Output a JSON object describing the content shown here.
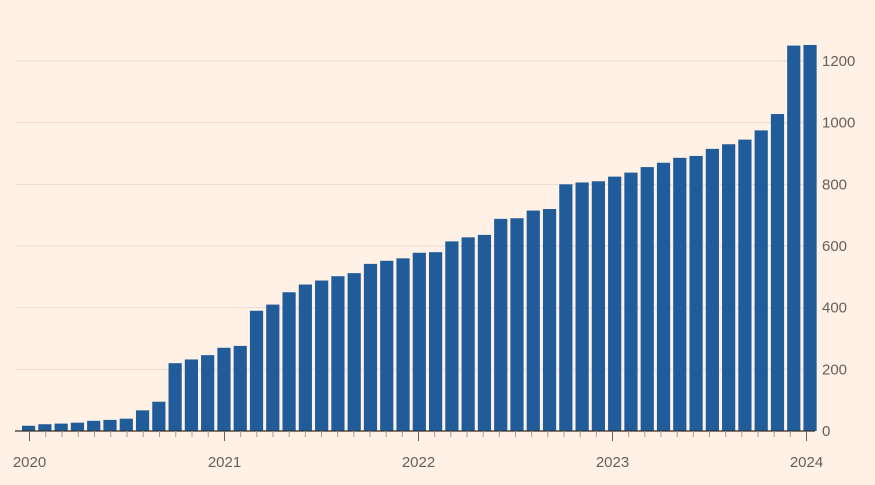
{
  "chart_data": {
    "type": "bar",
    "title": "",
    "xlabel": "",
    "ylabel": "",
    "ylim": [
      0,
      1300
    ],
    "y_axis_side": "right",
    "yticks": [
      "0",
      "200",
      "400",
      "600",
      "800",
      "1000",
      "1200"
    ],
    "xticks": [
      "2020",
      "2021",
      "2022",
      "2023",
      "2024"
    ],
    "grid": "horizontal",
    "bar_color": "#1f5c99",
    "background": "#fff1e5",
    "start_month": "2020-01",
    "values": [
      17,
      22,
      24,
      27,
      33,
      36,
      40,
      67,
      95,
      220,
      232,
      246,
      270,
      276,
      390,
      410,
      450,
      475,
      488,
      502,
      512,
      542,
      552,
      560,
      578,
      580,
      615,
      628,
      636,
      688,
      690,
      715,
      720,
      800,
      806,
      810,
      825,
      838,
      856,
      870,
      886,
      892,
      915,
      930,
      945,
      975,
      1028,
      1250,
      1252
    ]
  }
}
